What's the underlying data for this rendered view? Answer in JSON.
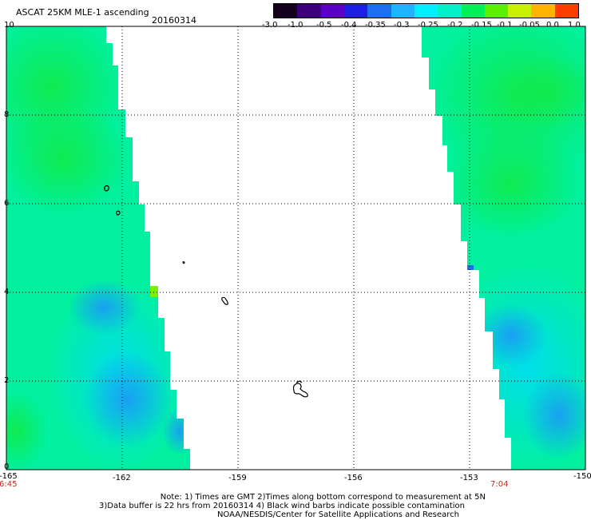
{
  "header": {
    "title": "ASCAT 25KM MLE-1 ascending",
    "date": "20160314"
  },
  "colorbar": {
    "labels": [
      "-3.0",
      "-1.0",
      "-0.5",
      "-0.4",
      "-0.35",
      "-0.3",
      "-0.25",
      "-0.2",
      "-0.15",
      "-0.1",
      "-0.05",
      "0.0",
      "1.0"
    ],
    "colors": [
      "#14001e",
      "#3c0078",
      "#5a00c8",
      "#1e1ee6",
      "#1e6ef0",
      "#1eb4ff",
      "#00f0ff",
      "#00f0c8",
      "#00f05a",
      "#5af000",
      "#c8f000",
      "#ffb400",
      "#ff3c00"
    ]
  },
  "axes": {
    "x_ticks": [
      "-165",
      "-162",
      "-159",
      "-156",
      "-153",
      "-150"
    ],
    "y_ticks": [
      "10",
      "8",
      "6",
      "4",
      "2",
      "0"
    ],
    "x_range": [
      -165,
      -150
    ],
    "y_range": [
      0,
      10
    ],
    "grid": "dotted"
  },
  "swaths": {
    "left_time": "6:45",
    "right_time": "7:04"
  },
  "notes": {
    "line1": "Note: 1) Times are GMT 2)Times along bottom correspond to measurement at 5N",
    "line2": "3)Data buffer is 22 hrs from 20160314 4) Black wind barbs indicate possible contamination",
    "line3": "NOAA/NESDIS/Center for Satellite Applications and Research"
  },
  "colors": {
    "swath_base": "#00f0a0",
    "swath_green": "#00f05a",
    "swath_blue": "#1eb4ff"
  }
}
